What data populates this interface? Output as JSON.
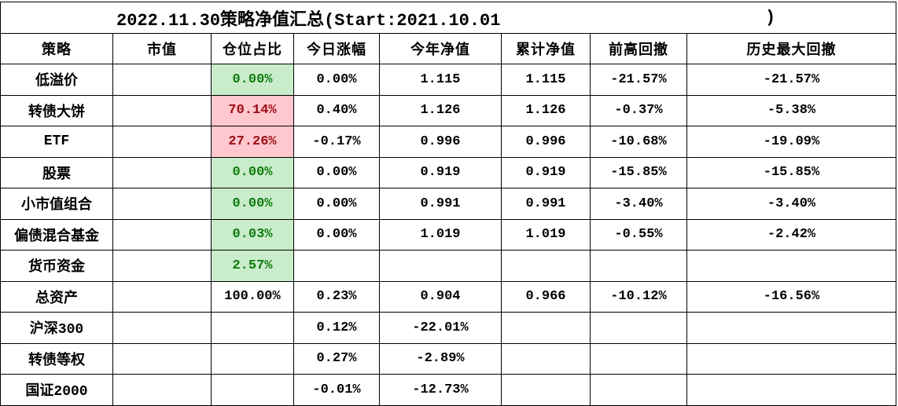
{
  "title": {
    "text": "2022.11.30策略净值汇总(Start:2021.10.01",
    "closing_paren": ")"
  },
  "colors": {
    "grid_border": "#000000",
    "position_green_bg": "#c9edca",
    "position_green_text": "#0e7a0e",
    "position_red_bg": "#ffc7ce",
    "position_red_text": "#9c0b12"
  },
  "columns": {
    "strategy": "策略",
    "market_value": "市值",
    "position_pct": "仓位占比",
    "today_change": "今日涨幅",
    "ytd_nav": "今年净值",
    "cumulative_nav": "累计净值",
    "drawdown_from_high": "前高回撤",
    "max_drawdown": "历史最大回撤"
  },
  "rows": [
    {
      "name": "低溢价",
      "market_value": "",
      "position": "0.00%",
      "today": "0.00%",
      "ytd": "1.115",
      "cumulative": "1.115",
      "drawdown_from_high": "-21.57%",
      "max_drawdown": "-21.57%"
    },
    {
      "name": "转债大饼",
      "market_value": "",
      "position": "70.14%",
      "today": "0.40%",
      "ytd": "1.126",
      "cumulative": "1.126",
      "drawdown_from_high": "-0.37%",
      "max_drawdown": "-5.38%"
    },
    {
      "name": "ETF",
      "market_value": "",
      "position": "27.26%",
      "today": "-0.17%",
      "ytd": "0.996",
      "cumulative": "0.996",
      "drawdown_from_high": "-10.68%",
      "max_drawdown": "-19.09%"
    },
    {
      "name": "股票",
      "market_value": "",
      "position": "0.00%",
      "today": "0.00%",
      "ytd": "0.919",
      "cumulative": "0.919",
      "drawdown_from_high": "-15.85%",
      "max_drawdown": "-15.85%"
    },
    {
      "name": "小市值组合",
      "market_value": "",
      "position": "0.00%",
      "today": "0.00%",
      "ytd": "0.991",
      "cumulative": "0.991",
      "drawdown_from_high": "-3.40%",
      "max_drawdown": "-3.40%"
    },
    {
      "name": "偏债混合基金",
      "market_value": "",
      "position": "0.03%",
      "today": "0.00%",
      "ytd": "1.019",
      "cumulative": "1.019",
      "drawdown_from_high": "-0.55%",
      "max_drawdown": "-2.42%"
    },
    {
      "name": "货币资金",
      "market_value": "",
      "position": "2.57%",
      "today": "",
      "ytd": "",
      "cumulative": "",
      "drawdown_from_high": "",
      "max_drawdown": ""
    },
    {
      "name": "总资产",
      "market_value": "",
      "position": "100.00%",
      "today": "0.23%",
      "ytd": "0.904",
      "cumulative": "0.966",
      "drawdown_from_high": "-10.12%",
      "max_drawdown": "-16.56%"
    },
    {
      "name": "沪深300",
      "market_value": "",
      "position": "",
      "today": "0.12%",
      "ytd": "-22.01%",
      "cumulative": "",
      "drawdown_from_high": "",
      "max_drawdown": ""
    },
    {
      "name": "转债等权",
      "market_value": "",
      "position": "",
      "today": "0.27%",
      "ytd": "-2.89%",
      "cumulative": "",
      "drawdown_from_high": "",
      "max_drawdown": ""
    },
    {
      "name": "国证2000",
      "market_value": "",
      "position": "",
      "today": "-0.01%",
      "ytd": "-12.73%",
      "cumulative": "",
      "drawdown_from_high": "",
      "max_drawdown": ""
    }
  ]
}
